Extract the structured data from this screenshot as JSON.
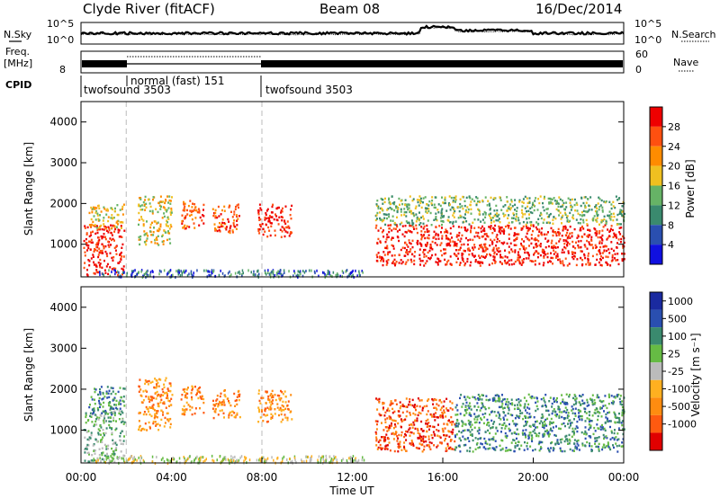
{
  "header": {
    "station": "Clyde River (fitACF)",
    "beam": "Beam 08",
    "date": "16/Dec/2014"
  },
  "top_panels": {
    "nsky_label": "N.Sky",
    "nsky_ticks": [
      "10^5",
      "10^0"
    ],
    "nsearch_label": "N.Search",
    "nsearch_ticks": [
      "10^5",
      "10^0"
    ],
    "freq_label": "Freq.",
    "freq_unit": "[MHz]",
    "freq_ticks": [
      "8"
    ],
    "nave_label": "Nave",
    "nave_ticks": [
      "60",
      "0"
    ],
    "cpid_label": "CPID",
    "cpid_segments": [
      {
        "label": "twofsound 3503",
        "start_hour": 0,
        "end_hour": 2
      },
      {
        "label": "normal (fast) 151",
        "start_hour": 2,
        "end_hour": 8
      },
      {
        "label": "twofsound 3503",
        "start_hour": 8,
        "end_hour": 24
      }
    ]
  },
  "colors": {
    "power": [
      "#1010e0",
      "#2a4fb0",
      "#3a8a6e",
      "#66b366",
      "#f0c020",
      "#ff8c00",
      "#ff5010",
      "#ee0000"
    ],
    "velocity": [
      "#e00000",
      "#ff5a10",
      "#ff8c10",
      "#ffb020",
      "#bbbbbb",
      "#66bb44",
      "#3a8a6e",
      "#2a4fb0",
      "#1a2aa0"
    ]
  },
  "chart_data": [
    {
      "type": "heatmap",
      "name": "power",
      "xlabel": "",
      "ylabel": "Slant Range [km]",
      "xlim_hours": [
        0,
        24
      ],
      "ylim_km": [
        200,
        4500
      ],
      "yticks": [
        "1000",
        "2000",
        "3000",
        "4000"
      ],
      "colorbar_label": "Power [dB]",
      "colorbar_ticks": [
        "4",
        "8",
        "12",
        "16",
        "20",
        "24",
        "28"
      ],
      "regions": [
        {
          "t0": 0.1,
          "t1": 1.9,
          "r0": 250,
          "r1": 1500,
          "level": 7
        },
        {
          "t0": 0.3,
          "t1": 1.9,
          "r0": 1400,
          "r1": 2000,
          "level": 4
        },
        {
          "t0": 2.5,
          "t1": 4.0,
          "r0": 1000,
          "r1": 2200,
          "level": 4
        },
        {
          "t0": 4.4,
          "t1": 5.4,
          "r0": 1400,
          "r1": 2100,
          "level": 6
        },
        {
          "t0": 5.8,
          "t1": 7.0,
          "r0": 1300,
          "r1": 2000,
          "level": 6
        },
        {
          "t0": 7.8,
          "t1": 9.3,
          "r0": 1200,
          "r1": 2000,
          "level": 7
        },
        {
          "t0": 13.0,
          "t1": 24.0,
          "r0": 500,
          "r1": 1500,
          "level": 7
        },
        {
          "t0": 13.0,
          "t1": 24.0,
          "r0": 1500,
          "r1": 2200,
          "level": 3
        }
      ]
    },
    {
      "type": "heatmap",
      "name": "velocity",
      "xlabel": "Time UT",
      "ylabel": "Slant Range [km]",
      "xlim_hours": [
        0,
        24
      ],
      "ylim_km": [
        200,
        4500
      ],
      "yticks": [
        "1000",
        "2000",
        "3000",
        "4000"
      ],
      "xticks": [
        "00:00",
        "04:00",
        "08:00",
        "12:00",
        "16:00",
        "20:00",
        "00:00"
      ],
      "colorbar_label": "Velocity [m s⁻¹]",
      "colorbar_ticks": [
        "1000",
        "500",
        "100",
        "25",
        "-25",
        "-100",
        "-500",
        "-1000"
      ],
      "regions": [
        {
          "t0": 0.1,
          "t1": 1.9,
          "r0": 250,
          "r1": 1500,
          "level": 5
        },
        {
          "t0": 0.3,
          "t1": 1.9,
          "r0": 1400,
          "r1": 2100,
          "level": 6
        },
        {
          "t0": 2.5,
          "t1": 4.0,
          "r0": 1000,
          "r1": 2300,
          "level": 2
        },
        {
          "t0": 4.4,
          "t1": 5.4,
          "r0": 1400,
          "r1": 2100,
          "level": 2
        },
        {
          "t0": 5.8,
          "t1": 7.0,
          "r0": 1300,
          "r1": 2000,
          "level": 2
        },
        {
          "t0": 7.8,
          "t1": 9.3,
          "r0": 1200,
          "r1": 2000,
          "level": 2
        },
        {
          "t0": 13.0,
          "t1": 16.5,
          "r0": 500,
          "r1": 1800,
          "level": 1
        },
        {
          "t0": 16.5,
          "t1": 24.0,
          "r0": 500,
          "r1": 1900,
          "level": 6
        }
      ]
    }
  ]
}
